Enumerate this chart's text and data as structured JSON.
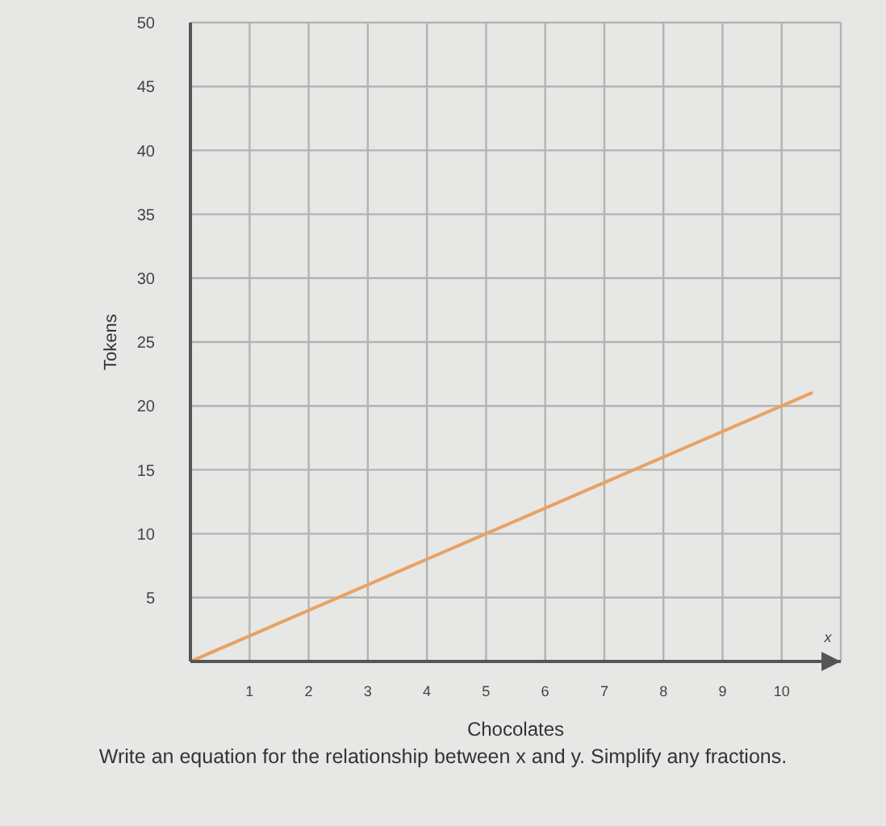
{
  "chart_data": {
    "type": "line",
    "xlabel": "Chocolates",
    "ylabel": "Tokens",
    "annotations": [
      "x",
      "Write an equation for the relationship between x and y. Simplify any fractions."
    ],
    "x": [
      0,
      10.5
    ],
    "values": [
      0,
      21
    ],
    "color": "#e8a263",
    "xlim": [
      0,
      11
    ],
    "xticks": [
      1,
      2,
      3,
      4,
      5,
      6,
      7,
      8,
      9,
      10
    ],
    "ylim": [
      0,
      50
    ],
    "yticks": [
      5,
      10,
      15,
      20,
      25,
      30,
      35,
      40,
      45,
      50
    ],
    "grid": true
  }
}
